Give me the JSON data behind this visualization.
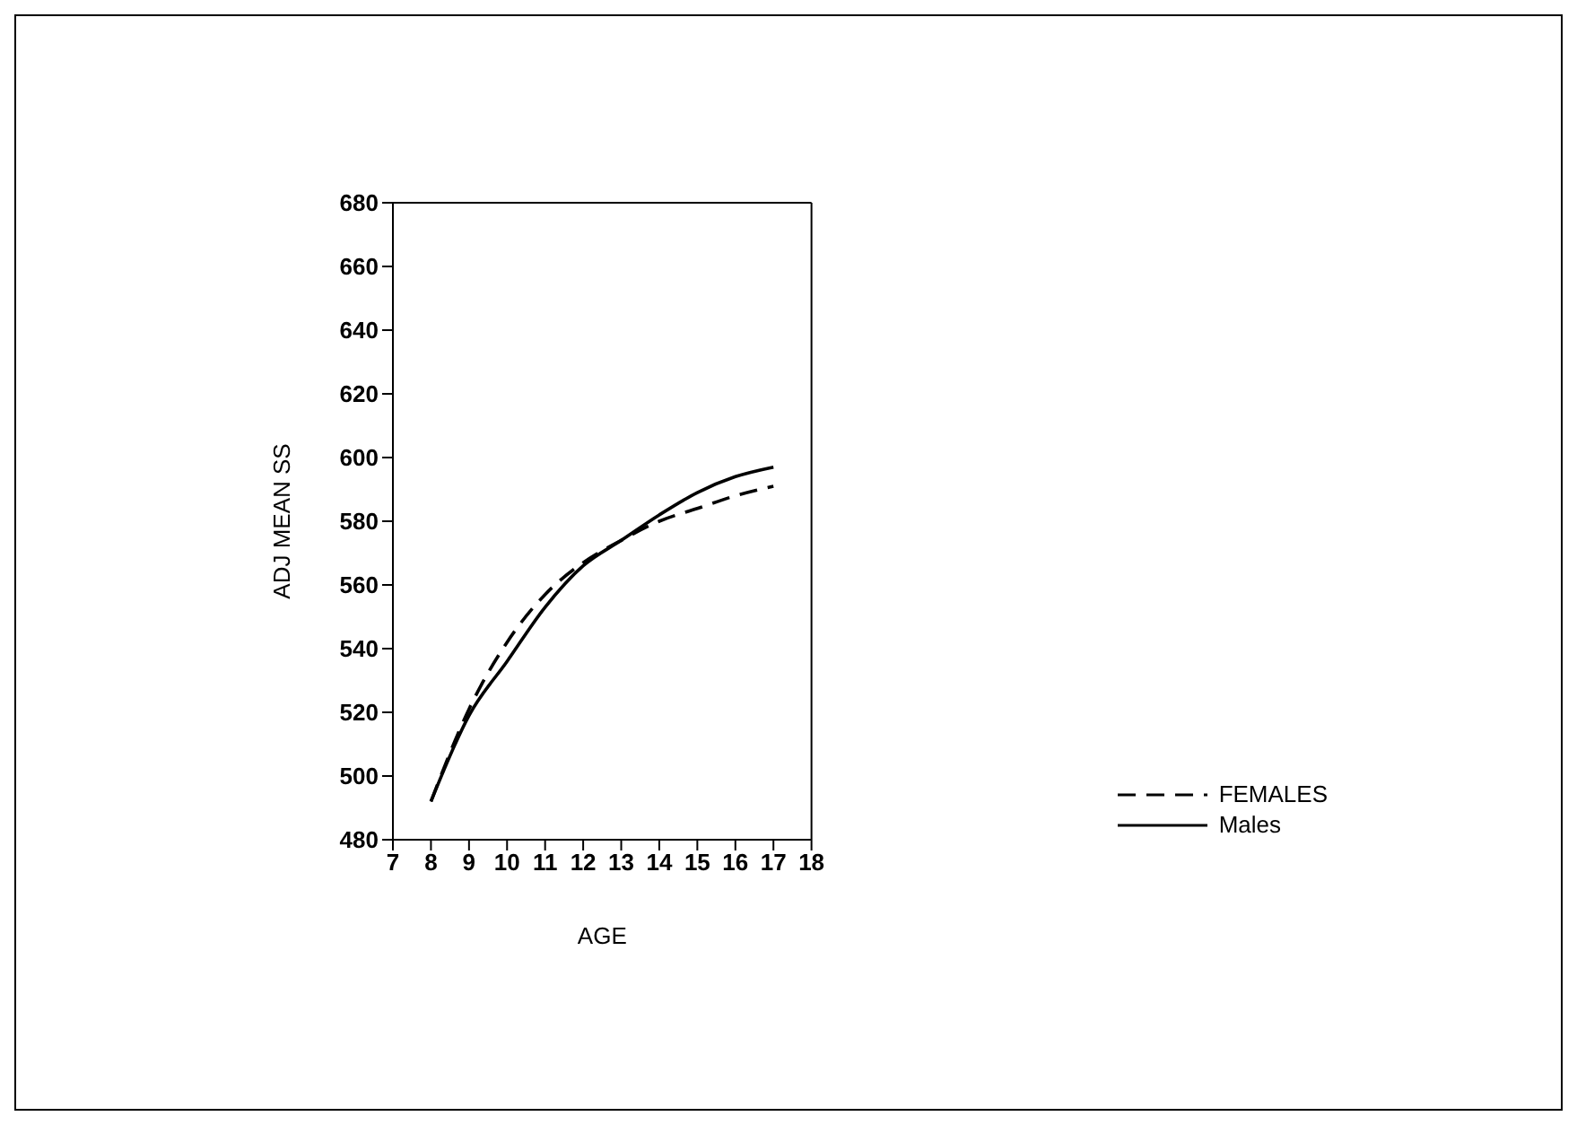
{
  "chart_data": {
    "type": "line",
    "xlabel": "AGE",
    "ylabel": "ADJ  MEAN  SS",
    "x": [
      8,
      9,
      10,
      11,
      12,
      13,
      14,
      15,
      16,
      17
    ],
    "series": [
      {
        "name": "FEMALES",
        "color": "#000000",
        "line_style": "dashed",
        "values": [
          492,
          521,
          542,
          557,
          567,
          574,
          580,
          584,
          588,
          591
        ]
      },
      {
        "name": "Males",
        "color": "#000000",
        "line_style": "solid",
        "values": [
          492,
          519,
          536,
          553,
          566,
          574,
          582,
          589,
          594,
          597
        ]
      }
    ],
    "xlim": [
      7,
      18
    ],
    "xticks": [
      7,
      8,
      9,
      10,
      11,
      12,
      13,
      14,
      15,
      16,
      17,
      18
    ],
    "ylim": [
      480,
      680
    ],
    "yticks": [
      480,
      500,
      520,
      540,
      560,
      580,
      600,
      620,
      640,
      660,
      680
    ],
    "grid": false,
    "legend": "bottom right",
    "marker": "none"
  }
}
